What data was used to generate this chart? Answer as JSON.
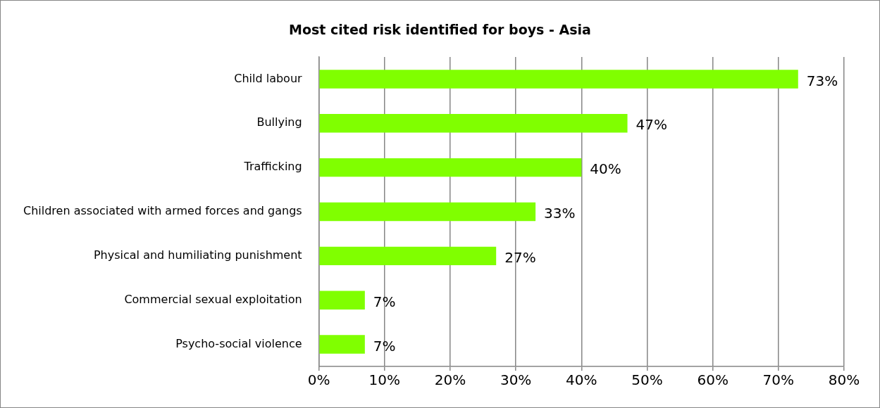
{
  "chart_data": {
    "type": "bar",
    "orientation": "horizontal",
    "title": "Most cited risk identified for boys - Asia",
    "categories": [
      "Child labour",
      "Bullying",
      "Trafficking",
      "Children associated with armed forces and gangs",
      "Physical and humiliating punishment",
      "Commercial sexual exploitation",
      "Psycho-social violence"
    ],
    "values": [
      73,
      47,
      40,
      33,
      27,
      7,
      7
    ],
    "value_labels": [
      "73%",
      "47%",
      "40%",
      "33%",
      "27%",
      "7%",
      "7%"
    ],
    "color": "#80ff00",
    "xlim": [
      0,
      80
    ],
    "xticks": [
      {
        "value": 0,
        "label": "0%"
      },
      {
        "value": 10,
        "label": "10%"
      },
      {
        "value": 20,
        "label": "20%"
      },
      {
        "value": 30,
        "label": "30%"
      },
      {
        "value": 40,
        "label": "40%"
      },
      {
        "value": 50,
        "label": "50%"
      },
      {
        "value": 60,
        "label": "60%"
      },
      {
        "value": 70,
        "label": "70%"
      },
      {
        "value": 80,
        "label": "80%"
      }
    ],
    "grid": "x",
    "legend": false
  }
}
